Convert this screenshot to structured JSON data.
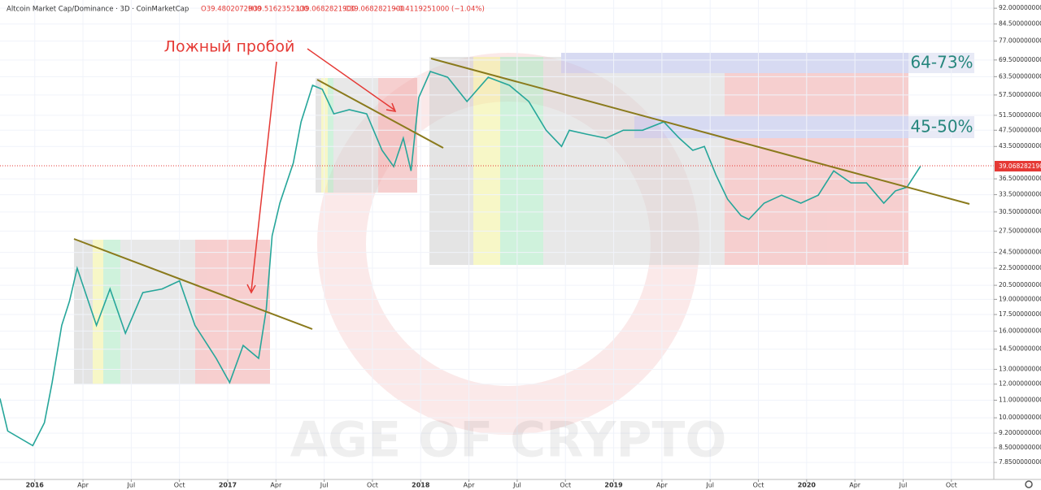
{
  "chart_data": {
    "type": "line",
    "title": "Altcoin Market Cap/Dominance · 3D · CoinMarketCap",
    "ohlc": [
      "O39.4802072900",
      "H39.5162352300",
      "L39.0682821900",
      "C39.0682821900",
      "−0.4119251000 (−1.04%)"
    ],
    "last_label": "39.0682821900",
    "annotations": [
      "Ложный пробой",
      "64-73%",
      "45-50%"
    ],
    "watermark": "AGE OF CRYPTO",
    "log_scale": true,
    "color": "#26a69a",
    "xlim": [
      2015.82,
      2020.97
    ],
    "ylim": [
      7.16,
      96.2
    ],
    "xticks": [
      2016,
      {
        "value": 2016.25,
        "label": "Apr"
      },
      {
        "value": 2016.5,
        "label": "Jul"
      },
      {
        "value": 2016.75,
        "label": "Oct"
      },
      2017,
      {
        "value": 2017.25,
        "label": "Apr"
      },
      {
        "value": 2017.5,
        "label": "Jul"
      },
      {
        "value": 2017.75,
        "label": "Oct"
      },
      2018,
      {
        "value": 2018.25,
        "label": "Apr"
      },
      {
        "value": 2018.5,
        "label": "Jul"
      },
      {
        "value": 2018.75,
        "label": "Oct"
      },
      2019,
      {
        "value": 2019.25,
        "label": "Apr"
      },
      {
        "value": 2019.5,
        "label": "Jul"
      },
      {
        "value": 2019.75,
        "label": "Oct"
      },
      2020,
      {
        "value": 2020.25,
        "label": "Apr"
      },
      {
        "value": 2020.5,
        "label": "Jul"
      },
      {
        "value": 2020.75,
        "label": "Oct"
      }
    ],
    "yticks": [
      {
        "value": 92,
        "label": "92.0000000000"
      },
      {
        "value": 84.5,
        "label": "84.5000000000"
      },
      {
        "value": 77,
        "label": "77.0000000000"
      },
      {
        "value": 69.5,
        "label": "69.5000000000"
      },
      {
        "value": 63.5,
        "label": "63.5000000000"
      },
      {
        "value": 57.5,
        "label": "57.5000000000"
      },
      {
        "value": 51.5,
        "label": "51.5000000000"
      },
      {
        "value": 47.5,
        "label": "47.5000000000"
      },
      {
        "value": 43.5,
        "label": "43.5000000000"
      },
      {
        "value": 36.5,
        "label": "36.5000000000"
      },
      {
        "value": 33.5,
        "label": "33.5000000000"
      },
      {
        "value": 30.5,
        "label": "30.5000000000"
      },
      {
        "value": 27.5,
        "label": "27.5000000000"
      },
      {
        "value": 24.5,
        "label": "24.5000000000"
      },
      {
        "value": 22.5,
        "label": "22.5000000000"
      },
      {
        "value": 20.5,
        "label": "20.5000000000"
      },
      {
        "value": 19,
        "label": "19.0000000000"
      },
      {
        "value": 17.5,
        "label": "17.5000000000"
      },
      {
        "value": 16,
        "label": "16.0000000000"
      },
      {
        "value": 14.5,
        "label": "14.5000000000"
      },
      {
        "value": 13,
        "label": "13.0000000000"
      },
      {
        "value": 12,
        "label": "12.0000000000"
      },
      {
        "value": 11,
        "label": "11.0000000000"
      },
      {
        "value": 10,
        "label": "10.0000000000"
      },
      {
        "value": 9.2,
        "label": "9.2000000000"
      },
      {
        "value": 8.5,
        "label": "8.5000000000"
      },
      {
        "value": 7.85,
        "label": "7.8500000000"
      }
    ],
    "x": [
      2015.82,
      2015.86,
      2015.99,
      2016.05,
      2016.09,
      2016.14,
      2016.18,
      2016.22,
      2016.32,
      2016.39,
      2016.47,
      2016.56,
      2016.66,
      2016.75,
      2016.83,
      2016.94,
      2017.01,
      2017.08,
      2017.16,
      2017.2,
      2017.23,
      2017.27,
      2017.34,
      2017.38,
      2017.44,
      2017.49,
      2017.55,
      2017.63,
      2017.72,
      2017.8,
      2017.86,
      2017.91,
      2017.95,
      2017.99,
      2018.05,
      2018.14,
      2018.24,
      2018.35,
      2018.46,
      2018.56,
      2018.65,
      2018.73,
      2018.77,
      2018.86,
      2018.96,
      2019.05,
      2019.15,
      2019.26,
      2019.34,
      2019.41,
      2019.47,
      2019.53,
      2019.59,
      2019.66,
      2019.7,
      2019.78,
      2019.87,
      2019.97,
      2020.06,
      2020.14,
      2020.23,
      2020.31,
      2020.4,
      2020.46,
      2020.52,
      2020.59
    ],
    "values": [
      11.1,
      9.31,
      8.6,
      9.73,
      12.1,
      16.5,
      18.8,
      22.5,
      16.5,
      20.1,
      15.8,
      19.7,
      20.1,
      21.0,
      16.5,
      13.8,
      12.1,
      14.8,
      13.8,
      18.0,
      26.8,
      32.0,
      39.8,
      49.7,
      60.6,
      59.3,
      51.9,
      53.1,
      51.9,
      42.6,
      39.0,
      45.5,
      38.1,
      56.7,
      65.3,
      63.3,
      55.5,
      63.3,
      60.6,
      55.5,
      47.5,
      43.5,
      47.5,
      46.5,
      45.5,
      47.5,
      47.5,
      49.7,
      45.5,
      42.6,
      43.5,
      37.3,
      32.7,
      29.9,
      29.3,
      32.0,
      33.4,
      32.0,
      33.4,
      38.1,
      35.7,
      35.7,
      32.0,
      34.2,
      34.9,
      39.07
    ]
  }
}
